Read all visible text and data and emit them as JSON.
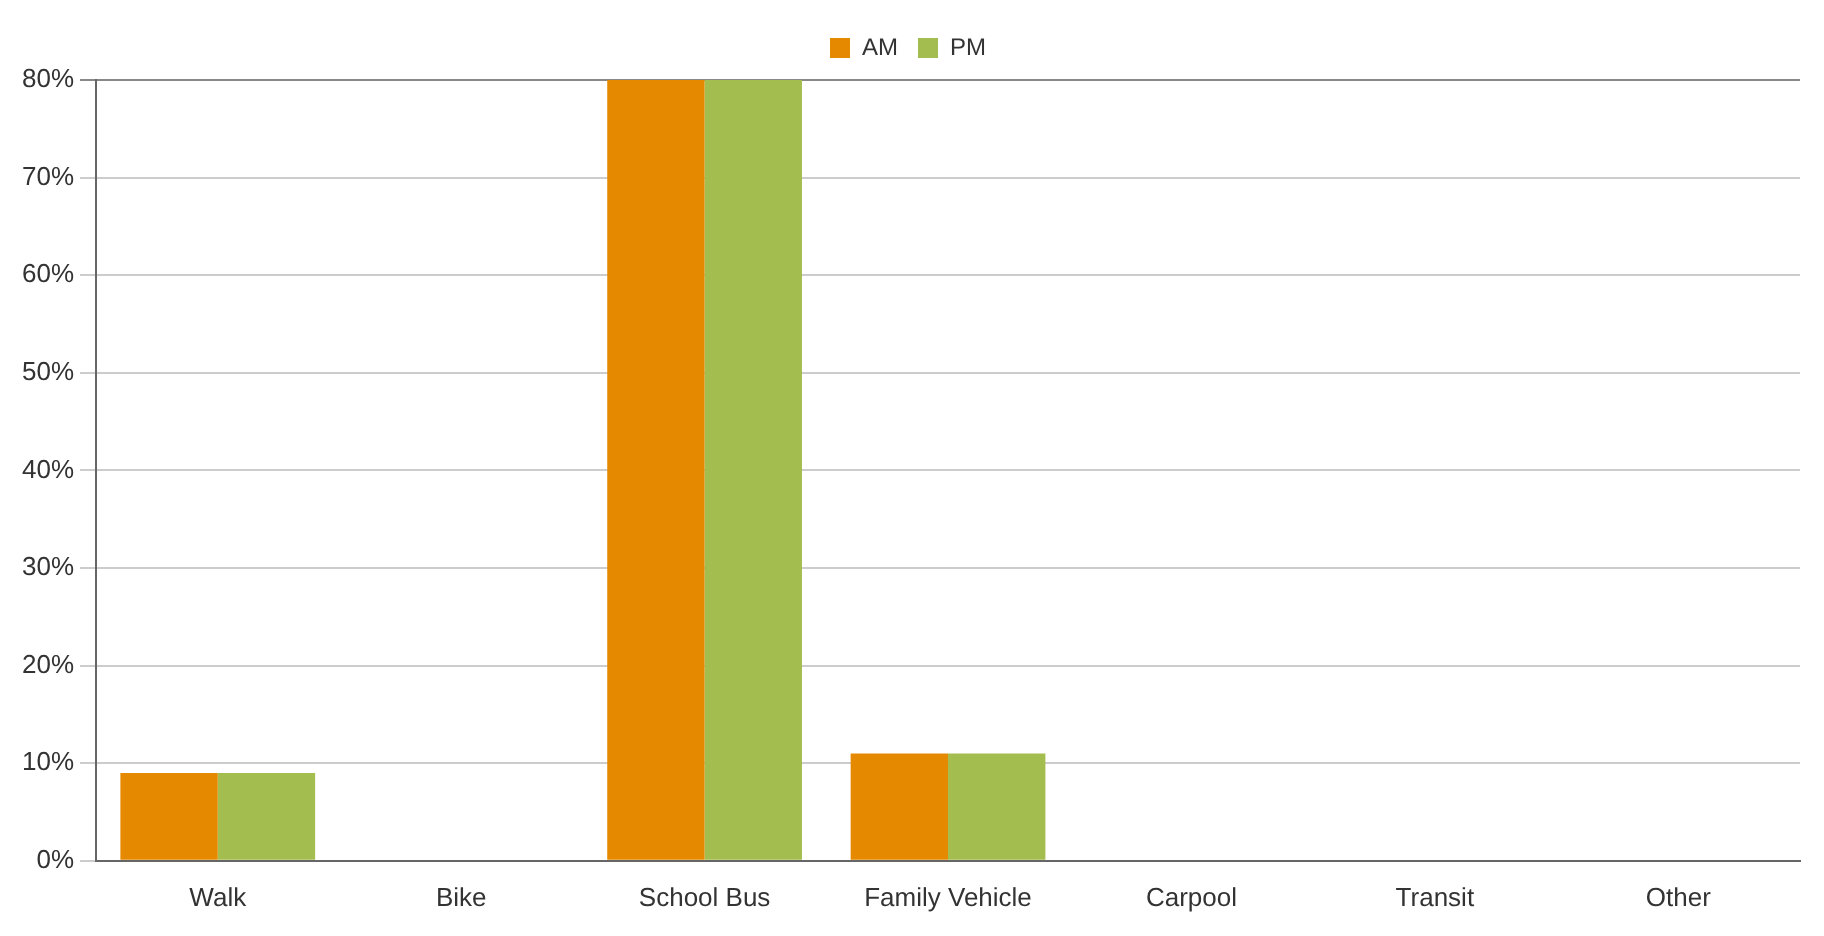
{
  "chart_data": {
    "type": "bar",
    "categories": [
      "Walk",
      "Bike",
      "School Bus",
      "Family Vehicle",
      "Carpool",
      "Transit",
      "Other"
    ],
    "series": [
      {
        "name": "AM",
        "color": "#e58a00",
        "values": [
          9,
          0,
          80,
          11,
          0,
          0,
          0
        ]
      },
      {
        "name": "PM",
        "color": "#a4bd4f",
        "values": [
          9,
          0,
          80,
          11,
          0,
          0,
          0
        ]
      }
    ],
    "ylim": [
      0,
      80
    ],
    "yticks": [
      {
        "value": 0,
        "label": "0%"
      },
      {
        "value": 10,
        "label": "10%"
      },
      {
        "value": 20,
        "label": "20%"
      },
      {
        "value": 30,
        "label": "30%"
      },
      {
        "value": 40,
        "label": "40%"
      },
      {
        "value": 50,
        "label": "50%"
      },
      {
        "value": 60,
        "label": "60%"
      },
      {
        "value": 70,
        "label": "70%"
      },
      {
        "value": 80,
        "label": "80%"
      }
    ],
    "grid": "y",
    "legend": "top"
  }
}
